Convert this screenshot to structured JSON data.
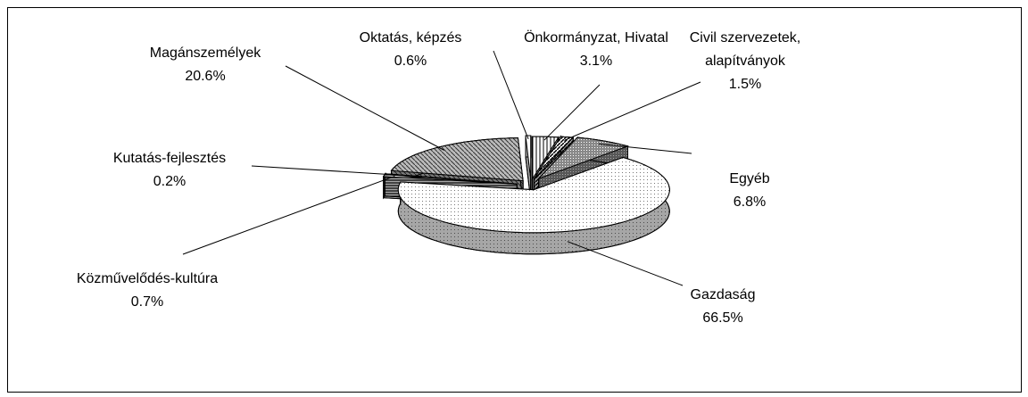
{
  "chart_data": {
    "type": "pie3d",
    "categories": [
      "Önkormányzat, Hivatal",
      "Civil szervezetek, alapítványok",
      "Egyéb",
      "Gazdaság",
      "Közművelődés-kultúra",
      "Kutatás-fejlesztés",
      "Magánszemélyek",
      "Oktatás, képzés"
    ],
    "values": [
      3.1,
      1.5,
      6.8,
      66.5,
      0.7,
      0.2,
      20.6,
      0.6
    ],
    "value_labels": [
      "3.1%",
      "1.5%",
      "6.8%",
      "66.5%",
      "0.7%",
      "0.2%",
      "20.6%",
      "0.6%"
    ]
  }
}
